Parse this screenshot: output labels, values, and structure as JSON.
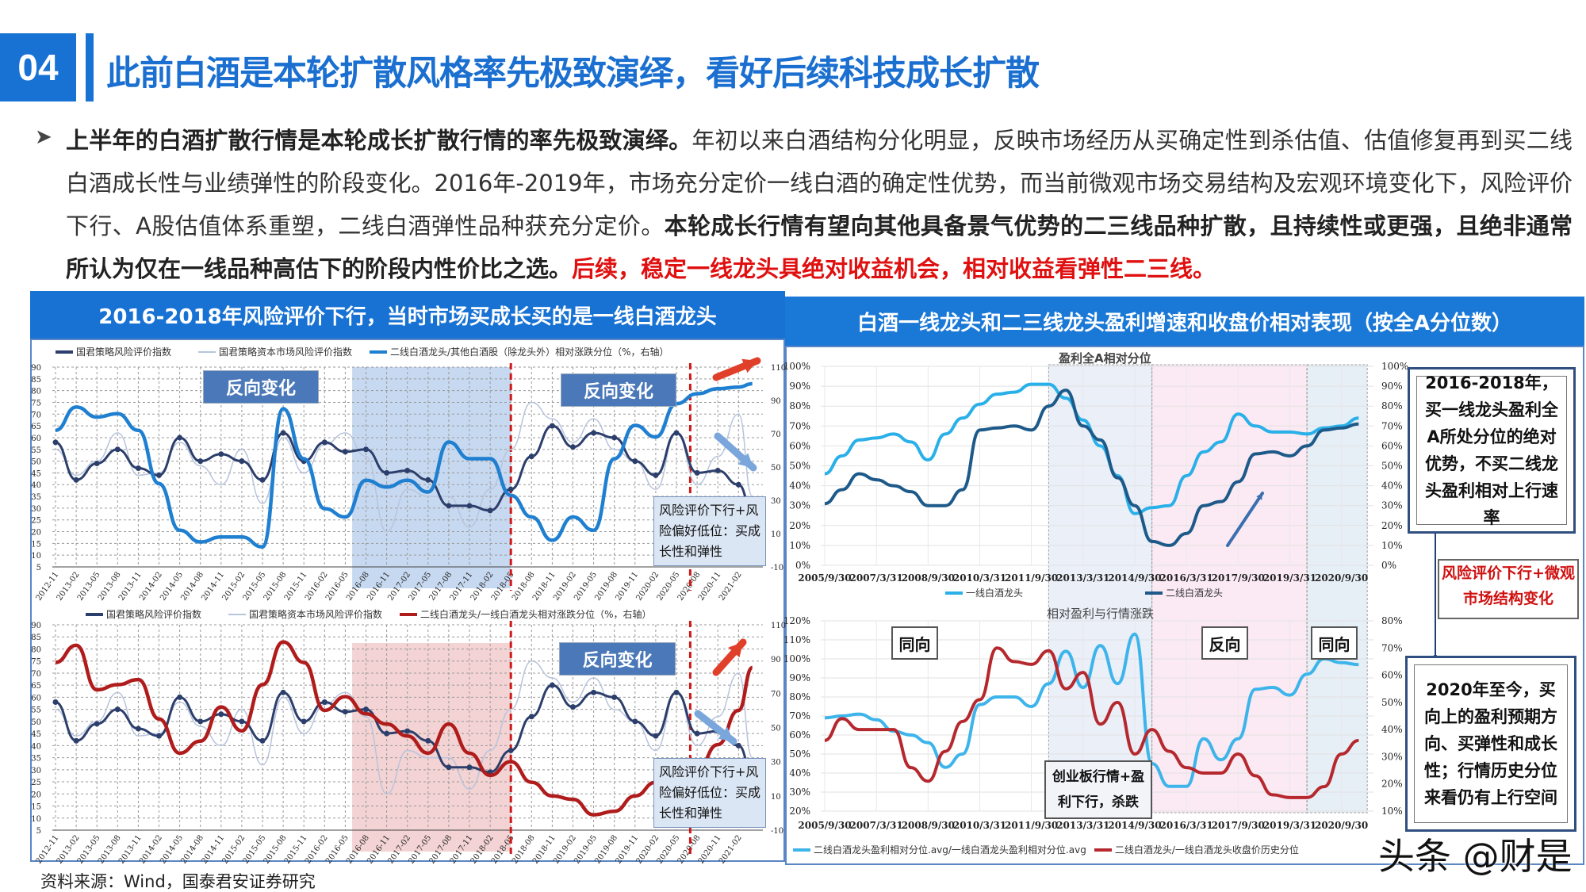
{
  "header": {
    "section_number": "04",
    "title": "此前白酒是本轮扩散风格率先极致演绎，看好后续科技成长扩散",
    "accent_color": "#1872d4"
  },
  "paragraph": {
    "bullet_icon": "triangle-bullet",
    "bold_1": "上半年的白酒扩散行情是本轮成长扩散行情的率先极致演绎。",
    "normal_1": "年初以来白酒结构分化明显，反映市场经历从买确定性到杀估值、估值修复再到买二线白酒成长性与业绩弹性的阶段变化。2016年-2019年，市场充分定价一线白酒的确定性优势，而当前微观市场交易结构及宏观环境变化下，风险评价下行、A股估值体系重塑，二线白酒弹性品种获充分定价。",
    "bold_2": "本轮成长行情有望向其他具备景气优势的二三线品种扩散，且持续性或更强，且绝非通常所认为仅在一线品种高估下的阶段内性价比之选。",
    "red_1": "后续，稳定一线龙头具绝对收益机会，相对收益看弹性二三线。"
  },
  "left_panel": {
    "title": "2016-2018年风险评价下行，当时市场买成长买的是一线白酒龙头"
  },
  "right_panel": {
    "title": "白酒一线龙头和二三线龙头盈利增速和收盘价相对表现（按全A分位数）",
    "side_box_1": "2016-2018年，买一线龙头盈利全A所处分位的绝对优势，不买二线龙头盈利相对上行速率",
    "red_box": "风险评价下行+微观市场结构变化",
    "side_box_2": "2020年至今，买向上的盈利预期方向、买弹性和成长性；行情历史分位来看仍有上行空间"
  },
  "source": "资料来源：Wind，国泰君安证券研究",
  "watermark": "头条 @财是",
  "chart_data": [
    {
      "type": "line",
      "x": [
        "2012-11",
        "2013-02",
        "2013-05",
        "2013-08",
        "2013-11",
        "2014-02",
        "2014-05",
        "2014-08",
        "2014-11",
        "2015-02",
        "2015-05",
        "2015-08",
        "2015-11",
        "2016-02",
        "2016-05",
        "2016-08",
        "2016-11",
        "2017-02",
        "2017-05",
        "2017-08",
        "2017-11",
        "2018-02",
        "2018-05",
        "2018-08",
        "2018-11",
        "2019-02",
        "2019-05",
        "2019-08",
        "2019-11",
        "2020-02",
        "2020-05",
        "2020-08",
        "2020-11",
        "2021-02",
        "2021-04"
      ],
      "x_tick_labels": [
        "2012-11",
        "2013-02",
        "2013-05",
        "2013-08",
        "2013-11",
        "2014-02",
        "2014-05",
        "2014-08",
        "2014-11",
        "2015-02",
        "2015-05",
        "2015-08",
        "2015-11",
        "2016-02",
        "2016-05",
        "2016-08",
        "2016-11",
        "2017-02",
        "2017-05",
        "2017-08",
        "2017-11",
        "2018-02",
        "2018-05",
        "2018-08",
        "2018-11",
        "2019-02",
        "2019-05",
        "2019-08",
        "2019-11",
        "2020-02",
        "2020-05",
        "2020-08",
        "2020-11",
        "2021-02"
      ],
      "series": [
        {
          "name": "国君策略风险评价指数",
          "axis": "left",
          "color": "#2c3e6b",
          "values": [
            58,
            42,
            49,
            55,
            47,
            44,
            60,
            50,
            53,
            50,
            42,
            62,
            50,
            58,
            54,
            55,
            45,
            46,
            42,
            31,
            31,
            29,
            38,
            52,
            65,
            56,
            62,
            60,
            50,
            44,
            62,
            45,
            46,
            40,
            29
          ]
        },
        {
          "name": "国君策略资本市场风险评价指数",
          "axis": "left",
          "color": "#b8c4dc",
          "values": [
            55,
            44,
            50,
            62,
            44,
            45,
            58,
            48,
            40,
            55,
            32,
            60,
            45,
            57,
            62,
            52,
            20,
            38,
            35,
            35,
            22,
            38,
            55,
            75,
            68,
            58,
            68,
            55,
            50,
            38,
            62,
            40,
            52,
            70,
            35
          ]
        },
        {
          "name": "二线白酒龙头/其他白酒股（除龙头外）相对涨跌分位（%，右轴）",
          "axis": "right",
          "color": "#1f7fd0",
          "values": [
            72,
            86,
            80,
            82,
            72,
            40,
            12,
            5,
            8,
            8,
            2,
            85,
            55,
            25,
            20,
            42,
            38,
            42,
            35,
            65,
            55,
            55,
            33,
            20,
            6,
            20,
            12,
            55,
            75,
            68,
            88,
            94,
            97,
            98,
            100
          ]
        }
      ],
      "y_left": {
        "range": [
          5,
          90
        ],
        "ticks": [
          5,
          10,
          15,
          20,
          25,
          30,
          35,
          40,
          45,
          50,
          55,
          60,
          65,
          70,
          75,
          80,
          85,
          90
        ]
      },
      "y_right": {
        "range": [
          -10,
          110
        ],
        "ticks": [
          -10,
          10,
          30,
          50,
          70,
          90,
          110
        ]
      },
      "shaded": [
        {
          "from": "2016-06",
          "to": "2018-05",
          "color": "#b9d0ec"
        }
      ],
      "vlines": [
        "2018-05",
        "2020-07"
      ],
      "annotations": [
        "反向变化",
        "反向变化",
        "风险评价下行+风险偏好低位：买成长性和弹性"
      ],
      "grid": true
    },
    {
      "type": "line",
      "x": [
        "2012-11",
        "2013-02",
        "2013-05",
        "2013-08",
        "2013-11",
        "2014-02",
        "2014-05",
        "2014-08",
        "2014-11",
        "2015-02",
        "2015-05",
        "2015-08",
        "2015-11",
        "2016-02",
        "2016-05",
        "2016-08",
        "2016-11",
        "2017-02",
        "2017-05",
        "2017-08",
        "2017-11",
        "2018-02",
        "2018-05",
        "2018-08",
        "2018-11",
        "2019-02",
        "2019-05",
        "2019-08",
        "2019-11",
        "2020-02",
        "2020-05",
        "2020-08",
        "2020-11",
        "2021-02",
        "2021-04"
      ],
      "x_tick_labels": [
        "2012-11",
        "2013-02",
        "2013-05",
        "2013-08",
        "2013-11",
        "2014-02",
        "2014-05",
        "2014-08",
        "2014-11",
        "2015-02",
        "2015-05",
        "2015-08",
        "2015-11",
        "2016-02",
        "2016-05",
        "2016-08",
        "2016-11",
        "2017-02",
        "2017-05",
        "2017-08",
        "2017-11",
        "2018-02",
        "2018-05",
        "2018-08",
        "2018-11",
        "2019-02",
        "2019-05",
        "2019-08",
        "2019-11",
        "2020-02",
        "2020-05",
        "2020-08",
        "2020-11",
        "2021-02"
      ],
      "series": [
        {
          "name": "国君策略风险评价指数",
          "axis": "left",
          "color": "#2c3e6b",
          "values": [
            58,
            42,
            49,
            55,
            47,
            44,
            60,
            50,
            53,
            50,
            42,
            62,
            50,
            58,
            54,
            55,
            45,
            46,
            42,
            31,
            31,
            29,
            38,
            52,
            65,
            56,
            62,
            60,
            50,
            44,
            62,
            45,
            46,
            40,
            29
          ]
        },
        {
          "name": "国君策略资本市场风险评价指数",
          "axis": "left",
          "color": "#b8c4dc",
          "values": [
            55,
            44,
            50,
            62,
            44,
            45,
            58,
            48,
            40,
            55,
            32,
            60,
            45,
            57,
            62,
            52,
            20,
            38,
            35,
            35,
            22,
            38,
            55,
            75,
            68,
            58,
            68,
            55,
            50,
            38,
            62,
            40,
            52,
            70,
            35
          ]
        },
        {
          "name": "二线白酒龙头/一线白酒龙头相对涨跌分位（%，右轴）",
          "axis": "right",
          "color": "#b01c1c",
          "values": [
            88,
            98,
            72,
            75,
            78,
            55,
            35,
            42,
            62,
            48,
            75,
            100,
            88,
            60,
            68,
            58,
            52,
            45,
            35,
            52,
            35,
            22,
            30,
            18,
            10,
            8,
            -1,
            1,
            10,
            18,
            18,
            25,
            40,
            60,
            85
          ]
        }
      ],
      "y_left": {
        "range": [
          5,
          90
        ],
        "ticks": [
          5,
          10,
          15,
          20,
          25,
          30,
          35,
          40,
          45,
          50,
          55,
          60,
          65,
          70,
          75,
          80,
          85,
          90
        ]
      },
      "y_right": {
        "range": [
          -10,
          110
        ],
        "ticks": [
          -10,
          10,
          30,
          50,
          70,
          90,
          110
        ]
      },
      "shaded": [
        {
          "from": "2016-06",
          "to": "2018-05",
          "color": "#f0c8c8"
        }
      ],
      "vlines": [
        "2018-05",
        "2020-07"
      ],
      "annotations": [
        "反向变化",
        "风险评价下行+风险偏好低位：买成长性和弹性"
      ],
      "grid": true
    },
    {
      "type": "line",
      "title": "盈利全A相对分位",
      "x": [
        "2005-09-30",
        "2006-03-31",
        "2006-09-30",
        "2007-03-31",
        "2007-09-30",
        "2008-03-31",
        "2008-09-30",
        "2009-03-31",
        "2009-09-30",
        "2010-03-31",
        "2010-09-30",
        "2011-03-31",
        "2011-09-30",
        "2012-03-31",
        "2012-09-30",
        "2013-03-31",
        "2013-09-30",
        "2014-03-31",
        "2014-09-30",
        "2015-03-31",
        "2015-09-30",
        "2016-03-31",
        "2016-09-30",
        "2017-03-31",
        "2017-09-30",
        "2018-03-31",
        "2018-09-30",
        "2019-03-31",
        "2019-09-30",
        "2020-03-31",
        "2020-09-30",
        "2021-03-31"
      ],
      "x_tick_labels": [
        "2005/9/30",
        "2007/3/31",
        "2008/9/30",
        "2010/3/31",
        "2011/9/30",
        "2013/3/31",
        "2014/9/30",
        "2016/3/31",
        "2017/9/30",
        "2019/3/31",
        "2020/9/30"
      ],
      "series": [
        {
          "name": "一线白酒龙头",
          "axis": "left",
          "color": "#2ab0e8",
          "values": [
            46,
            55,
            63,
            64,
            66,
            62,
            53,
            66,
            74,
            81,
            86,
            87,
            91,
            91,
            84,
            73,
            60,
            45,
            26,
            29,
            30,
            45,
            57,
            62,
            76,
            70,
            67,
            67,
            66,
            69,
            70,
            74
          ]
        },
        {
          "name": "二线白酒龙头",
          "axis": "left",
          "color": "#1d5a8a",
          "values": [
            31,
            38,
            46,
            43,
            40,
            37,
            30,
            30,
            38,
            68,
            69,
            70,
            68,
            80,
            88,
            70,
            63,
            44,
            30,
            12,
            10,
            16,
            30,
            32,
            42,
            56,
            57,
            55,
            60,
            68,
            69,
            71
          ]
        }
      ],
      "y_left": {
        "range": [
          0,
          100
        ],
        "ticks": [
          "0%",
          "10%",
          "20%",
          "30%",
          "40%",
          "50%",
          "60%",
          "70%",
          "80%",
          "90%",
          "100%"
        ]
      },
      "y_right": {
        "range": [
          0,
          100
        ],
        "ticks": [
          "0%",
          "10%",
          "20%",
          "30%",
          "40%",
          "50%",
          "60%",
          "70%",
          "80%",
          "90%",
          "100%"
        ]
      },
      "shaded": [
        {
          "from": "2012-03-31",
          "to": "2015-03-31",
          "color": "#e6ecf7"
        },
        {
          "from": "2015-03-31",
          "to": "2019-09-30",
          "color": "#fbe6f1"
        },
        {
          "from": "2019-09-30",
          "to": "2021-06-30",
          "color": "#e2ecf5"
        }
      ],
      "grid": true
    },
    {
      "type": "line",
      "title": "相对盈利与行情涨跌",
      "x": [
        "2005-09-30",
        "2006-03-31",
        "2006-09-30",
        "2007-03-31",
        "2007-09-30",
        "2008-03-31",
        "2008-09-30",
        "2009-03-31",
        "2009-09-30",
        "2010-03-31",
        "2010-09-30",
        "2011-03-31",
        "2011-09-30",
        "2012-03-31",
        "2012-09-30",
        "2013-03-31",
        "2013-09-30",
        "2014-03-31",
        "2014-09-30",
        "2015-03-31",
        "2015-09-30",
        "2016-03-31",
        "2016-09-30",
        "2017-03-31",
        "2017-09-30",
        "2018-03-31",
        "2018-09-30",
        "2019-03-31",
        "2019-09-30",
        "2020-03-31",
        "2020-09-30",
        "2021-03-31"
      ],
      "x_tick_labels": [
        "2005/9/30",
        "2007/3/31",
        "2008/9/30",
        "2010/3/31",
        "2011/9/30",
        "2013/3/31",
        "2014/9/30",
        "2016/3/31",
        "2017/9/30",
        "2019/3/31",
        "2020/9/30"
      ],
      "series": [
        {
          "name": "二线白酒龙头盈利相对分位.avg/一线白酒龙头盈利相对分位.avg",
          "axis": "left",
          "color": "#3db4ea",
          "values": [
            69,
            70,
            71,
            68,
            62,
            60,
            56,
            43,
            50,
            76,
            80,
            80,
            75,
            87,
            104,
            85,
            107,
            87,
            113,
            45,
            33,
            33,
            58,
            47,
            58,
            84,
            85,
            81,
            92,
            100,
            98,
            97
          ]
        },
        {
          "name": "二线白酒龙头/一线白酒龙头收盘价历史分位",
          "axis": "right",
          "color": "#b5282e",
          "values": [
            36,
            44,
            40,
            40,
            40,
            26,
            21,
            32,
            43,
            51,
            70,
            65,
            64,
            69,
            55,
            61,
            42,
            50,
            31,
            40,
            32,
            26,
            24,
            24,
            31,
            23,
            16,
            15,
            15,
            19,
            31,
            36
          ]
        }
      ],
      "y_left": {
        "range": [
          20,
          120
        ],
        "ticks": [
          "20%",
          "30%",
          "40%",
          "50%",
          "60%",
          "70%",
          "80%",
          "90%",
          "100%",
          "110%",
          "120%"
        ]
      },
      "y_right": {
        "range": [
          10,
          80
        ],
        "ticks": [
          "10%",
          "20%",
          "30%",
          "40%",
          "50%",
          "60%",
          "70%",
          "80%"
        ]
      },
      "shaded": [
        {
          "from": "2012-03-31",
          "to": "2015-03-31",
          "color": "#e6ecf7"
        },
        {
          "from": "2015-03-31",
          "to": "2019-09-30",
          "color": "#fbe6f1"
        },
        {
          "from": "2019-09-30",
          "to": "2021-06-30",
          "color": "#e2ecf5"
        }
      ],
      "annotations": [
        "同向",
        "反向",
        "同向",
        "创业板行情+盈利下行，杀跌"
      ],
      "grid": true
    }
  ]
}
